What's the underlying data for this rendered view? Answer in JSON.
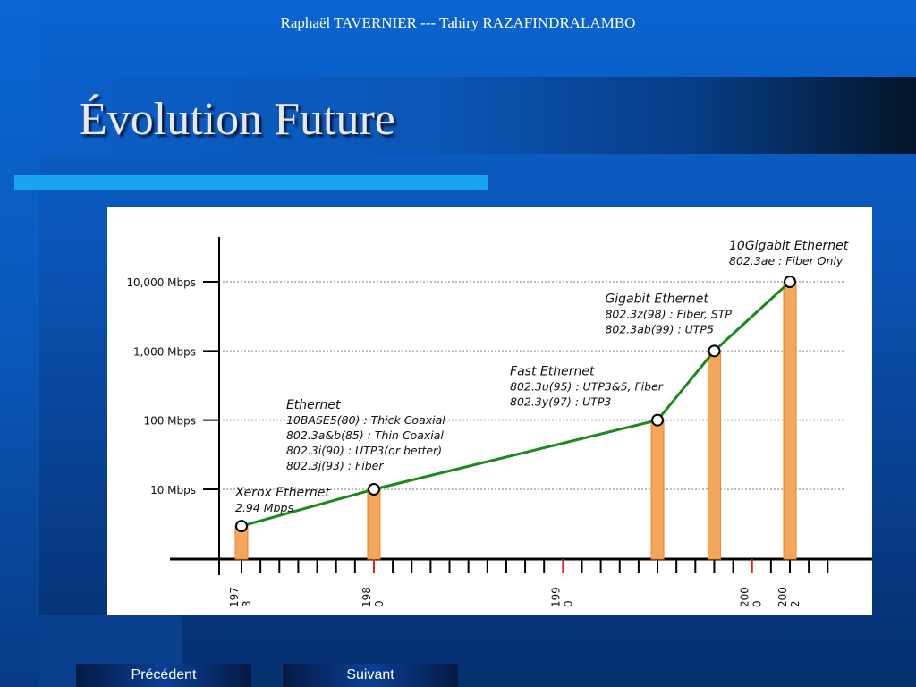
{
  "header": {
    "authors": "Raphaël TAVERNIER --- Tahiry RAZAFINDRALAMBO",
    "title": "Évolution Future"
  },
  "nav": {
    "previous_label": "Précédent",
    "next_label": "Suivant"
  },
  "colors": {
    "background": "#0a55b8",
    "rule_bar": "#1aa3ef",
    "line": "#1a8a1a",
    "bar": "#f5a65a",
    "red_tick": "#e02020"
  },
  "chart_data": {
    "type": "line",
    "ylabel_ticks": [
      "10,000 Mbps",
      "1,000 Mbps",
      "100 Mbps",
      "10 Mbps"
    ],
    "y_tick_values": [
      10000,
      1000,
      100,
      10
    ],
    "y_scale": "log",
    "x_tick_labels": [
      {
        "year": 1973,
        "lines": [
          "197",
          "3"
        ]
      },
      {
        "year": 1980,
        "lines": [
          "198",
          "0"
        ]
      },
      {
        "year": 1990,
        "lines": [
          "199",
          "0"
        ]
      },
      {
        "year": 2000,
        "lines": [
          "200",
          "0"
        ]
      },
      {
        "year": 2002,
        "lines": [
          "200",
          "2"
        ]
      }
    ],
    "red_tick_years": [
      1980,
      1990,
      2000
    ],
    "xlim": [
      1972,
      2007
    ],
    "ylim_mbps": [
      0.35,
      50000
    ],
    "grid": true,
    "points": [
      {
        "x": 1973,
        "y": 2.94
      },
      {
        "x": 1980,
        "y": 10
      },
      {
        "x": 1995,
        "y": 100
      },
      {
        "x": 1998,
        "y": 1000
      },
      {
        "x": 2002,
        "y": 10000
      }
    ],
    "annotations": [
      {
        "lines": [
          "Xerox Ethernet",
          "2.94 Mbps"
        ],
        "anchor": 0
      },
      {
        "lines": [
          "Ethernet",
          "10BASE5(80) : Thick Coaxial",
          "802.3a&b(85) : Thin Coaxial",
          "802.3i(90) : UTP3(or better)",
          "802.3j(93) : Fiber"
        ],
        "anchor": 1
      },
      {
        "lines": [
          "Fast Ethernet",
          "802.3u(95) : UTP3&5, Fiber",
          "802.3y(97) : UTP3"
        ],
        "anchor": 2
      },
      {
        "lines": [
          "Gigabit Ethernet",
          "802.3z(98) : Fiber, STP",
          "802.3ab(99) : UTP5"
        ],
        "anchor": 3
      },
      {
        "lines": [
          "10Gigabit Ethernet",
          "802.3ae : Fiber Only"
        ],
        "anchor": 4
      }
    ]
  }
}
